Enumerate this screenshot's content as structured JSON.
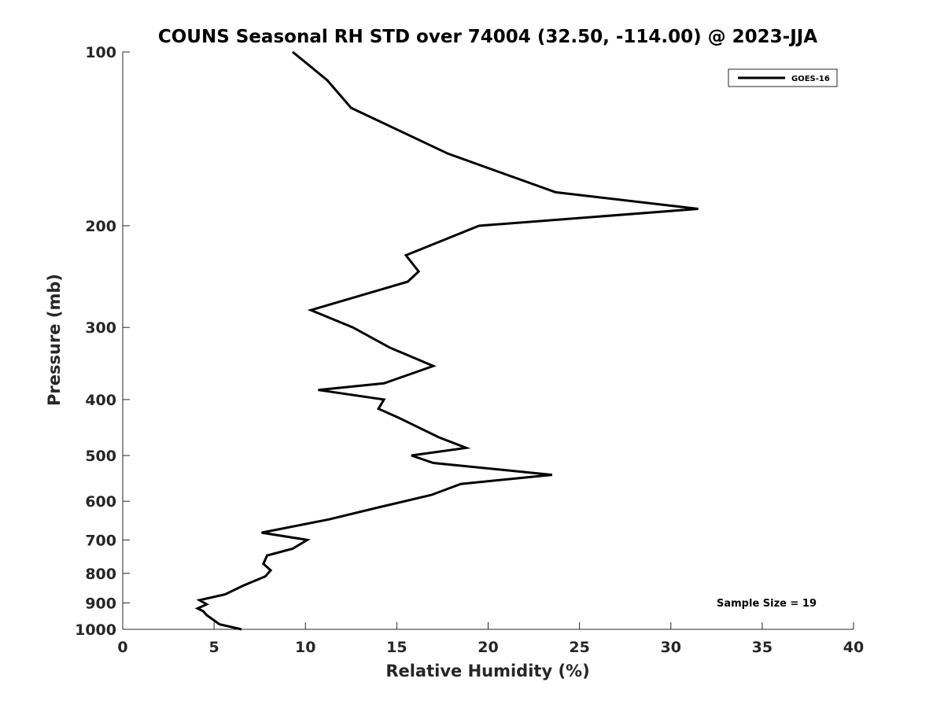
{
  "chart_data": {
    "type": "line",
    "title": "COUNS Seasonal RH STD over 74004 (32.50, -114.00) @ 2023-JJA",
    "xlabel": "Relative Humidity (%)",
    "ylabel": "Pressure (mb)",
    "xlim": [
      0,
      40
    ],
    "ylim": [
      100,
      1000
    ],
    "y_scale": "log",
    "y_reversed": true,
    "x_ticks": [
      "0",
      "5",
      "10",
      "15",
      "20",
      "25",
      "30",
      "35",
      "40"
    ],
    "y_ticks": [
      "100",
      "200",
      "300",
      "400",
      "500",
      "600",
      "700",
      "800",
      "900",
      "1000"
    ],
    "grid": false,
    "legend_position": "top-right",
    "annotation": "Sample Size = 19",
    "series": [
      {
        "name": "GOES-16",
        "color": "#000000",
        "x": [
          9.3,
          11.2,
          12.5,
          17.8,
          23.7,
          31.5,
          19.5,
          15.5,
          16.2,
          15.6,
          10.3,
          12.6,
          14.6,
          17.0,
          14.3,
          10.7,
          14.3,
          14.0,
          15.1,
          17.3,
          18.8,
          15.8,
          17.0,
          23.5,
          18.5,
          16.9,
          14.0,
          11.3,
          7.6,
          10.1,
          9.3,
          7.9,
          7.7,
          8.1,
          7.8,
          6.6,
          5.6,
          4.2,
          4.6,
          4.1,
          4.4,
          4.6,
          4.9,
          5.3,
          6.5
        ],
        "y": [
          100,
          112,
          125,
          150,
          175,
          187,
          200,
          225,
          240,
          250,
          280,
          300,
          325,
          350,
          375,
          385,
          400,
          415,
          430,
          465,
          485,
          500,
          515,
          540,
          560,
          585,
          615,
          645,
          680,
          700,
          725,
          745,
          770,
          790,
          810,
          840,
          870,
          890,
          905,
          920,
          930,
          945,
          960,
          980,
          1000
        ]
      }
    ]
  }
}
